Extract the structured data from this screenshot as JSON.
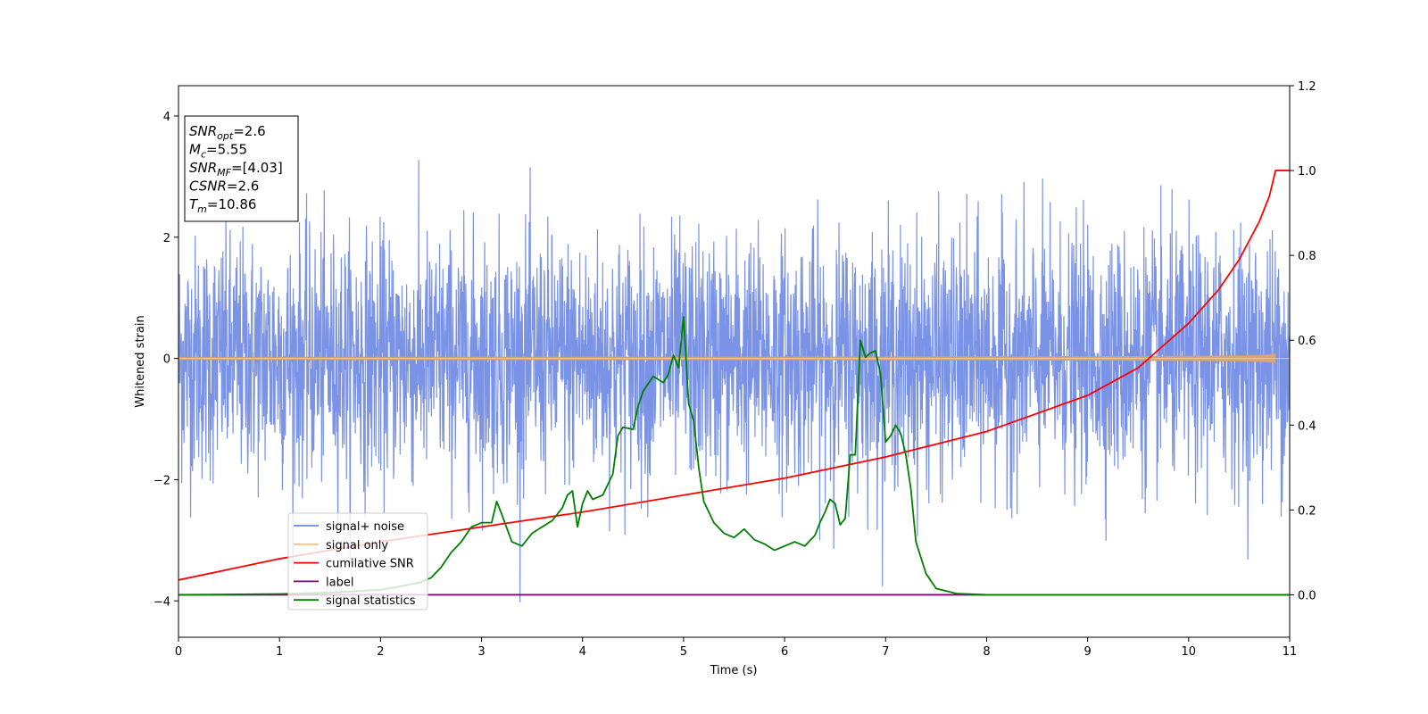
{
  "chart_data": {
    "type": "line",
    "xlabel": "Time (s)",
    "ylabel": "Whitened strain",
    "xlim": [
      0,
      11
    ],
    "ylim_left": [
      -4.6,
      4.5
    ],
    "ylim_right": [
      -0.1,
      1.2
    ],
    "xticks": [
      "0",
      "1",
      "2",
      "3",
      "4",
      "5",
      "6",
      "7",
      "8",
      "9",
      "10",
      "11"
    ],
    "yticks_left": [
      "−4",
      "−2",
      "0",
      "2",
      "4"
    ],
    "yticks_right": [
      "0.0",
      "0.2",
      "0.4",
      "0.6",
      "0.8",
      "1.0",
      "1.2"
    ],
    "legend_location": "lower-left",
    "info_box": {
      "lines": [
        {
          "sym": "SNR",
          "sub": "opt",
          "val": "=2.6"
        },
        {
          "sym": "M",
          "sub": "c",
          "val": "=5.55"
        },
        {
          "sym": "SNR",
          "sub": "MF",
          "val": "=[4.03]"
        },
        {
          "sym": "CSNR",
          "sub": "",
          "val": "=2.6"
        },
        {
          "sym": "T",
          "sub": "m",
          "val": "=10.86"
        }
      ]
    },
    "series": [
      {
        "name": "signal+ noise",
        "axis": "left",
        "color": "#6b87e3",
        "noise_std": 1.0,
        "t_end": 11.0
      },
      {
        "name": "signal only",
        "axis": "left",
        "color": "#ffc36e",
        "amplitude_start": 0.02,
        "amplitude_peak": 0.35,
        "t_merge": 10.86
      },
      {
        "name": "cumilative SNR",
        "axis": "right",
        "color": "#ff0000",
        "x": [
          0,
          1,
          2,
          3,
          4,
          5,
          6,
          7,
          8,
          9,
          9.5,
          10,
          10.3,
          10.5,
          10.7,
          10.8,
          10.86,
          11
        ],
        "y": [
          0.035,
          0.085,
          0.125,
          0.16,
          0.195,
          0.235,
          0.275,
          0.325,
          0.385,
          0.47,
          0.535,
          0.64,
          0.72,
          0.79,
          0.88,
          0.94,
          1.0,
          1.0
        ]
      },
      {
        "name": "label",
        "axis": "right",
        "color": "#800080",
        "x": [
          0,
          11
        ],
        "y": [
          0.0,
          0.0
        ]
      },
      {
        "name": "signal statistics",
        "axis": "right",
        "color": "#008000",
        "x": [
          0,
          1,
          1.5,
          2,
          2.2,
          2.4,
          2.5,
          2.6,
          2.7,
          2.8,
          2.9,
          3.0,
          3.1,
          3.15,
          3.2,
          3.3,
          3.4,
          3.5,
          3.6,
          3.7,
          3.8,
          3.85,
          3.9,
          3.95,
          4.0,
          4.05,
          4.1,
          4.2,
          4.3,
          4.35,
          4.4,
          4.5,
          4.55,
          4.6,
          4.7,
          4.8,
          4.85,
          4.9,
          4.95,
          5.0,
          5.05,
          5.1,
          5.15,
          5.2,
          5.3,
          5.4,
          5.5,
          5.6,
          5.7,
          5.8,
          5.9,
          6.0,
          6.1,
          6.2,
          6.3,
          6.35,
          6.4,
          6.45,
          6.5,
          6.55,
          6.6,
          6.65,
          6.7,
          6.75,
          6.8,
          6.85,
          6.9,
          6.95,
          7.0,
          7.05,
          7.1,
          7.15,
          7.2,
          7.25,
          7.3,
          7.4,
          7.5,
          7.7,
          8,
          11
        ],
        "y": [
          0.0,
          0.002,
          0.005,
          0.012,
          0.02,
          0.03,
          0.04,
          0.065,
          0.1,
          0.125,
          0.16,
          0.17,
          0.17,
          0.22,
          0.19,
          0.125,
          0.115,
          0.145,
          0.16,
          0.175,
          0.205,
          0.235,
          0.245,
          0.16,
          0.215,
          0.245,
          0.225,
          0.235,
          0.285,
          0.375,
          0.395,
          0.39,
          0.445,
          0.48,
          0.515,
          0.5,
          0.52,
          0.565,
          0.535,
          0.655,
          0.45,
          0.41,
          0.3,
          0.22,
          0.17,
          0.145,
          0.135,
          0.155,
          0.13,
          0.12,
          0.105,
          0.115,
          0.125,
          0.115,
          0.14,
          0.17,
          0.195,
          0.225,
          0.215,
          0.165,
          0.18,
          0.33,
          0.33,
          0.6,
          0.56,
          0.57,
          0.575,
          0.52,
          0.36,
          0.375,
          0.4,
          0.38,
          0.33,
          0.25,
          0.125,
          0.05,
          0.015,
          0.003,
          0.0,
          0.0
        ]
      }
    ]
  }
}
